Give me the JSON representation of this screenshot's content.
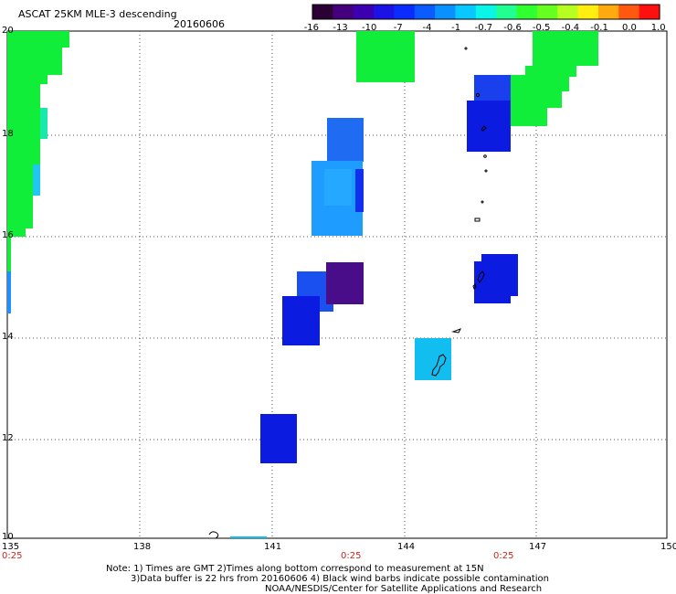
{
  "title": "ASCAT 25KM MLE-3 descending",
  "date": "20160606",
  "colorbar": {
    "labels": [
      "-16",
      "-13",
      "-10",
      "-7",
      "-4",
      "-1",
      "-0.7",
      "-0.6",
      "-0.5",
      "-0.4",
      "-0.1",
      "0.0",
      "1.0"
    ],
    "colors": [
      "#2a0035",
      "#43007a",
      "#3c00b0",
      "#1c12e6",
      "#0a2cff",
      "#0a5cff",
      "#0a90ff",
      "#08c8ff",
      "#0af5e8",
      "#20ff90",
      "#30ff30",
      "#66ff20",
      "#b6ff20",
      "#ffee10",
      "#ffaa10",
      "#ff5810",
      "#ff1010"
    ]
  },
  "map": {
    "lon_labels": [
      "135",
      "138",
      "141",
      "144",
      "147",
      "150"
    ],
    "lat_labels": [
      "20",
      "18",
      "16",
      "14",
      "12",
      "10"
    ],
    "time_labels": [
      "0:25",
      "0:25",
      "0:25"
    ],
    "colors": {
      "green": "#11ee3a",
      "blue": "#1830ee",
      "navy": "#0b1be0",
      "sky": "#1e90ff",
      "cyan": "#12bdf0",
      "purple": "#4a0d8a",
      "grid": "#555555"
    }
  },
  "notes": {
    "line1": "Note: 1) Times are GMT 2)Times along bottom correspond to measurement at 15N",
    "line2": "3)Data buffer is 22 hrs from 20160606 4) Black wind barbs indicate possible contamination",
    "line3": "NOAA/NESDIS/Center for Satellite Applications and Research"
  }
}
